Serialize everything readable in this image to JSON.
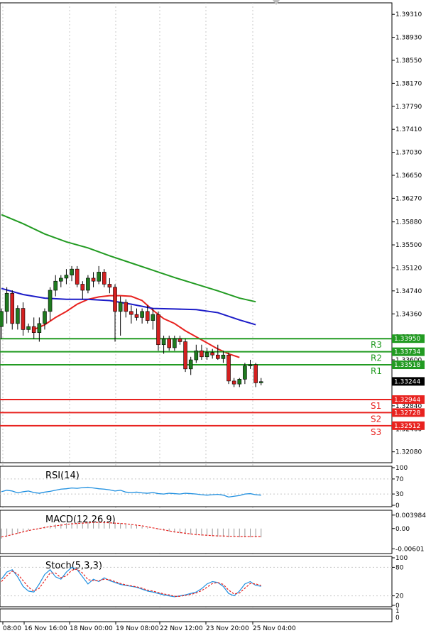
{
  "chart_data": [
    {
      "type": "candlestick",
      "title": "",
      "ylim": [
        1.319,
        1.395
      ],
      "y_ticks": [
        "1.39310",
        "1.38930",
        "1.38550",
        "1.38170",
        "1.37790",
        "1.37410",
        "1.37030",
        "1.36650",
        "1.36270",
        "1.35880",
        "1.35500",
        "1.35120",
        "1.34740",
        "1.34360",
        "1.33980",
        "1.33600",
        "1.33220",
        "1.32840",
        "1.32460",
        "1.32080"
      ],
      "x_labels": [
        "08:00",
        "16 Nov 16:00",
        "18 Nov 00:00",
        "19 Nov 08:00",
        "22 Nov 12:00",
        "23 Nov 20:00",
        "25 Nov 04:00"
      ],
      "candles": [
        {
          "o": 1.3415,
          "h": 1.3445,
          "l": 1.3395,
          "c": 1.344
        },
        {
          "o": 1.344,
          "h": 1.348,
          "l": 1.342,
          "c": 1.347
        },
        {
          "o": 1.347,
          "h": 1.3475,
          "l": 1.341,
          "c": 1.342
        },
        {
          "o": 1.342,
          "h": 1.345,
          "l": 1.341,
          "c": 1.3445
        },
        {
          "o": 1.3445,
          "h": 1.3455,
          "l": 1.34,
          "c": 1.341
        },
        {
          "o": 1.341,
          "h": 1.342,
          "l": 1.3405,
          "c": 1.3415
        },
        {
          "o": 1.3415,
          "h": 1.343,
          "l": 1.3395,
          "c": 1.3405
        },
        {
          "o": 1.3405,
          "h": 1.343,
          "l": 1.339,
          "c": 1.342
        },
        {
          "o": 1.342,
          "h": 1.3445,
          "l": 1.341,
          "c": 1.344
        },
        {
          "o": 1.344,
          "h": 1.348,
          "l": 1.3425,
          "c": 1.3475
        },
        {
          "o": 1.3475,
          "h": 1.35,
          "l": 1.3465,
          "c": 1.349
        },
        {
          "o": 1.349,
          "h": 1.35,
          "l": 1.348,
          "c": 1.3495
        },
        {
          "o": 1.3495,
          "h": 1.351,
          "l": 1.3485,
          "c": 1.35
        },
        {
          "o": 1.35,
          "h": 1.3515,
          "l": 1.349,
          "c": 1.351
        },
        {
          "o": 1.351,
          "h": 1.3515,
          "l": 1.348,
          "c": 1.3485
        },
        {
          "o": 1.3485,
          "h": 1.349,
          "l": 1.346,
          "c": 1.3475
        },
        {
          "o": 1.3475,
          "h": 1.35,
          "l": 1.347,
          "c": 1.3495
        },
        {
          "o": 1.3495,
          "h": 1.3505,
          "l": 1.348,
          "c": 1.349
        },
        {
          "o": 1.349,
          "h": 1.3515,
          "l": 1.3485,
          "c": 1.3505
        },
        {
          "o": 1.3505,
          "h": 1.351,
          "l": 1.348,
          "c": 1.3485
        },
        {
          "o": 1.3485,
          "h": 1.3495,
          "l": 1.347,
          "c": 1.348
        },
        {
          "o": 1.348,
          "h": 1.3485,
          "l": 1.339,
          "c": 1.344
        },
        {
          "o": 1.344,
          "h": 1.3465,
          "l": 1.34,
          "c": 1.3455
        },
        {
          "o": 1.3455,
          "h": 1.346,
          "l": 1.343,
          "c": 1.344
        },
        {
          "o": 1.344,
          "h": 1.345,
          "l": 1.342,
          "c": 1.3435
        },
        {
          "o": 1.3435,
          "h": 1.3445,
          "l": 1.3425,
          "c": 1.343
        },
        {
          "o": 1.343,
          "h": 1.3445,
          "l": 1.342,
          "c": 1.344
        },
        {
          "o": 1.344,
          "h": 1.345,
          "l": 1.342,
          "c": 1.3425
        },
        {
          "o": 1.3425,
          "h": 1.3445,
          "l": 1.341,
          "c": 1.3435
        },
        {
          "o": 1.3435,
          "h": 1.344,
          "l": 1.3375,
          "c": 1.3385
        },
        {
          "o": 1.3385,
          "h": 1.34,
          "l": 1.337,
          "c": 1.3395
        },
        {
          "o": 1.3395,
          "h": 1.34,
          "l": 1.3375,
          "c": 1.338
        },
        {
          "o": 1.338,
          "h": 1.34,
          "l": 1.3375,
          "c": 1.3395
        },
        {
          "o": 1.3395,
          "h": 1.34,
          "l": 1.3385,
          "c": 1.339
        },
        {
          "o": 1.339,
          "h": 1.3395,
          "l": 1.334,
          "c": 1.3345
        },
        {
          "o": 1.3345,
          "h": 1.3365,
          "l": 1.3335,
          "c": 1.336
        },
        {
          "o": 1.336,
          "h": 1.3385,
          "l": 1.3355,
          "c": 1.3375
        },
        {
          "o": 1.3375,
          "h": 1.3385,
          "l": 1.336,
          "c": 1.3365
        },
        {
          "o": 1.3365,
          "h": 1.338,
          "l": 1.336,
          "c": 1.3372
        },
        {
          "o": 1.3372,
          "h": 1.3378,
          "l": 1.3362,
          "c": 1.3368
        },
        {
          "o": 1.3368,
          "h": 1.3385,
          "l": 1.336,
          "c": 1.3362
        },
        {
          "o": 1.3362,
          "h": 1.3375,
          "l": 1.3355,
          "c": 1.3368
        },
        {
          "o": 1.3368,
          "h": 1.3372,
          "l": 1.332,
          "c": 1.3325
        },
        {
          "o": 1.3325,
          "h": 1.333,
          "l": 1.3315,
          "c": 1.332
        },
        {
          "o": 1.332,
          "h": 1.333,
          "l": 1.3315,
          "c": 1.3328
        },
        {
          "o": 1.3328,
          "h": 1.3355,
          "l": 1.332,
          "c": 1.335
        },
        {
          "o": 1.335,
          "h": 1.336,
          "l": 1.3345,
          "c": 1.3352
        },
        {
          "o": 1.3352,
          "h": 1.3355,
          "l": 1.3315,
          "c": 1.3322
        },
        {
          "o": 1.3322,
          "h": 1.333,
          "l": 1.3318,
          "c": 1.3324
        }
      ],
      "moving_averages": [
        {
          "color": "#e8221f",
          "values": [
            [
              6,
              1.341
            ],
            [
              8,
              1.3418
            ],
            [
              10,
              1.343
            ],
            [
              12,
              1.344
            ],
            [
              14,
              1.3452
            ],
            [
              16,
              1.346
            ],
            [
              18,
              1.3464
            ],
            [
              20,
              1.3466
            ],
            [
              22,
              1.3466
            ],
            [
              24,
              1.3465
            ],
            [
              26,
              1.3458
            ],
            [
              28,
              1.3442
            ],
            [
              30,
              1.3428
            ],
            [
              32,
              1.342
            ],
            [
              34,
              1.3408
            ],
            [
              36,
              1.3398
            ],
            [
              38,
              1.3388
            ],
            [
              40,
              1.3378
            ],
            [
              42,
              1.337
            ],
            [
              44,
              1.3364
            ]
          ]
        },
        {
          "color": "#1c1cc8",
          "values": [
            [
              0,
              1.3478
            ],
            [
              4,
              1.3468
            ],
            [
              8,
              1.3462
            ],
            [
              12,
              1.346
            ],
            [
              16,
              1.346
            ],
            [
              20,
              1.3458
            ],
            [
              24,
              1.3452
            ],
            [
              28,
              1.3445
            ],
            [
              32,
              1.3444
            ],
            [
              36,
              1.3443
            ],
            [
              40,
              1.3438
            ],
            [
              44,
              1.3426
            ],
            [
              47,
              1.3418
            ]
          ]
        },
        {
          "color": "#229b22",
          "values": [
            [
              0,
              1.36
            ],
            [
              4,
              1.3585
            ],
            [
              8,
              1.3568
            ],
            [
              12,
              1.3555
            ],
            [
              16,
              1.3545
            ],
            [
              20,
              1.3532
            ],
            [
              24,
              1.352
            ],
            [
              28,
              1.3508
            ],
            [
              32,
              1.3496
            ],
            [
              36,
              1.3485
            ],
            [
              40,
              1.3474
            ],
            [
              44,
              1.3462
            ],
            [
              47,
              1.3456
            ]
          ]
        }
      ],
      "levels": [
        {
          "label": "R3",
          "value": 1.3395,
          "value_text": "1.33950",
          "color": "#229b22"
        },
        {
          "label": "R2",
          "value": 1.33734,
          "value_text": "1.33734",
          "color": "#229b22"
        },
        {
          "label": "R1",
          "value": 1.33518,
          "value_text": "1.33518",
          "color": "#229b22"
        },
        {
          "label": "S1",
          "value": 1.32944,
          "value_text": "1.32944",
          "color": "#e8221f"
        },
        {
          "label": "S2",
          "value": 1.32728,
          "value_text": "1.32728",
          "color": "#e8221f"
        },
        {
          "label": "S3",
          "value": 1.32512,
          "value_text": "1.32512",
          "color": "#e8221f"
        }
      ],
      "current_price": {
        "value": 1.33244,
        "value_text": "1.33244"
      }
    },
    {
      "type": "line",
      "title": "RSI(14)",
      "ylim": [
        0,
        100
      ],
      "y_ticks": [
        "100",
        "70",
        "30",
        "0"
      ],
      "series": [
        {
          "color": "#1e8fe0",
          "values": [
            36,
            40,
            38,
            33,
            36,
            38,
            34,
            32,
            35,
            37,
            40,
            43,
            44,
            46,
            45,
            47,
            48,
            46,
            44,
            43,
            41,
            38,
            40,
            35,
            34,
            35,
            33,
            32,
            34,
            31,
            30,
            32,
            31,
            30,
            32,
            31,
            30,
            28,
            27,
            28,
            29,
            27,
            22,
            24,
            26,
            30,
            31,
            28,
            27
          ]
        }
      ]
    },
    {
      "type": "histogram",
      "title": "MACD(12,26,9)",
      "ylim": [
        -0.007,
        0.005
      ],
      "y_ticks": [
        "0.003984",
        "0.00",
        "-0.00601"
      ],
      "signal_color": "#e8221f",
      "signal": [
        -0.0025,
        -0.0022,
        -0.0018,
        -0.0014,
        -0.001,
        -0.0006,
        -0.0003,
        0.0,
        0.0003,
        0.0006,
        0.0008,
        0.001,
        0.0012,
        0.0014,
        0.0015,
        0.0016,
        0.0017,
        0.0018,
        0.0018,
        0.0018,
        0.0017,
        0.0016,
        0.0015,
        0.0014,
        0.0012,
        0.001,
        0.0008,
        0.0005,
        0.0002,
        -0.0001,
        -0.0004,
        -0.0007,
        -0.001,
        -0.0012,
        -0.0014,
        -0.0016,
        -0.0018,
        -0.0019,
        -0.002,
        -0.0021,
        -0.0022,
        -0.0022,
        -0.0023,
        -0.0023,
        -0.0024,
        -0.0024,
        -0.0024,
        -0.0024,
        -0.0024
      ],
      "histogram": [
        -0.003,
        -0.0025,
        -0.002,
        -0.0015,
        -0.001,
        -0.0006,
        -0.0002,
        0.0002,
        0.0006,
        0.0009,
        0.0012,
        0.0014,
        0.0016,
        0.0018,
        0.0019,
        0.0019,
        0.002,
        0.002,
        0.002,
        0.0019,
        0.0018,
        0.0017,
        0.0016,
        0.0014,
        0.0012,
        0.0009,
        0.0006,
        0.0003,
        0.0,
        -0.0003,
        -0.0006,
        -0.0009,
        -0.0012,
        -0.0014,
        -0.0016,
        -0.0018,
        -0.002,
        -0.0021,
        -0.0022,
        -0.0023,
        -0.0024,
        -0.0025,
        -0.0026,
        -0.0026,
        -0.0026,
        -0.0026,
        -0.0026,
        -0.0026,
        -0.0026
      ]
    },
    {
      "type": "line",
      "title": "Stoch(5,3,3)",
      "ylim": [
        0,
        100
      ],
      "y_ticks": [
        "100",
        "80",
        "20",
        "0"
      ],
      "series": [
        {
          "color": "#1e8fe0",
          "values": [
            55,
            70,
            75,
            60,
            40,
            30,
            28,
            45,
            65,
            75,
            60,
            55,
            70,
            80,
            75,
            60,
            45,
            55,
            50,
            58,
            52,
            48,
            44,
            42,
            40,
            38,
            34,
            30,
            28,
            25,
            22,
            20,
            18,
            20,
            22,
            25,
            28,
            35,
            45,
            50,
            48,
            40,
            25,
            20,
            30,
            45,
            50,
            42,
            40
          ]
        },
        {
          "color": "#e8221f",
          "dashed": true,
          "values": [
            50,
            62,
            72,
            66,
            52,
            38,
            30,
            36,
            52,
            68,
            68,
            58,
            62,
            74,
            76,
            68,
            54,
            52,
            52,
            55,
            54,
            50,
            46,
            43,
            41,
            39,
            36,
            32,
            30,
            27,
            24,
            22,
            19,
            19,
            21,
            23,
            26,
            31,
            38,
            46,
            48,
            44,
            32,
            24,
            26,
            36,
            46,
            45,
            42
          ]
        }
      ]
    }
  ]
}
